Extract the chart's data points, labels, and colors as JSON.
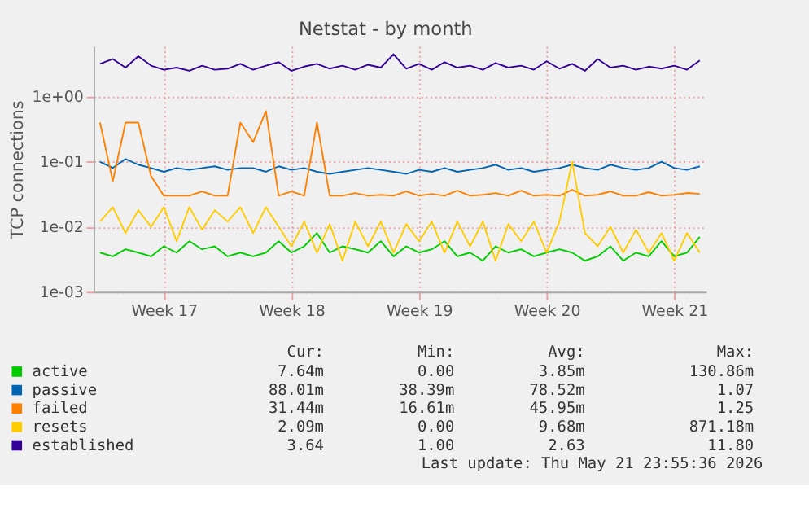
{
  "chart_data": {
    "type": "line",
    "title": "Netstat - by month",
    "ylabel": "TCP connections",
    "log": "y",
    "grid": true,
    "legend": "bottom",
    "line_style": "solid",
    "categories": [
      null,
      null,
      null,
      null,
      null,
      "Week 17",
      null,
      null,
      null,
      null,
      null,
      null,
      null,
      null,
      null,
      "Week 18",
      null,
      null,
      null,
      null,
      null,
      null,
      null,
      null,
      null,
      "Week 19",
      null,
      null,
      null,
      null,
      null,
      null,
      null,
      null,
      null,
      "Week 20",
      null,
      null,
      null,
      null,
      null,
      null,
      null,
      null,
      null,
      "Week 21",
      null,
      null
    ],
    "ylim": [
      0.001,
      6
    ],
    "yticks": [
      {
        "value": 0.001,
        "label": "1e-03"
      },
      {
        "value": 0.01,
        "label": "1e-02"
      },
      {
        "value": 0.1,
        "label": "1e-01"
      },
      {
        "value": 1,
        "label": "1e+00"
      }
    ],
    "series": [
      {
        "name": "active",
        "color": "#00cc00",
        "values": [
          0.004,
          0.0035,
          0.0045,
          0.004,
          0.0035,
          0.005,
          0.004,
          0.006,
          0.0045,
          0.005,
          0.0035,
          0.004,
          0.0035,
          0.004,
          0.006,
          0.004,
          0.005,
          0.008,
          0.004,
          0.005,
          0.0045,
          0.004,
          0.006,
          0.0035,
          0.005,
          0.004,
          0.0045,
          0.006,
          0.0035,
          0.004,
          0.003,
          0.005,
          0.004,
          0.0045,
          0.0035,
          0.004,
          0.0045,
          0.004,
          0.003,
          0.0035,
          0.005,
          0.003,
          0.004,
          0.0035,
          0.006,
          0.0035,
          0.004,
          0.007
        ]
      },
      {
        "name": "passive",
        "color": "#0066b3",
        "values": [
          0.1,
          0.08,
          0.11,
          0.09,
          0.08,
          0.07,
          0.08,
          0.075,
          0.08,
          0.085,
          0.075,
          0.08,
          0.08,
          0.07,
          0.085,
          0.075,
          0.08,
          0.07,
          0.065,
          0.07,
          0.075,
          0.08,
          0.075,
          0.07,
          0.065,
          0.075,
          0.07,
          0.08,
          0.07,
          0.075,
          0.08,
          0.09,
          0.075,
          0.08,
          0.07,
          0.075,
          0.08,
          0.09,
          0.08,
          0.075,
          0.09,
          0.08,
          0.075,
          0.08,
          0.1,
          0.08,
          0.075,
          0.085
        ]
      },
      {
        "name": "failed",
        "color": "#ff8000",
        "values": [
          0.4,
          0.05,
          0.4,
          0.4,
          0.06,
          0.03,
          0.03,
          0.03,
          0.035,
          0.03,
          0.03,
          0.4,
          0.2,
          0.6,
          0.03,
          0.035,
          0.03,
          0.4,
          0.03,
          0.03,
          0.033,
          0.03,
          0.031,
          0.03,
          0.035,
          0.03,
          0.032,
          0.03,
          0.036,
          0.03,
          0.031,
          0.033,
          0.03,
          0.036,
          0.03,
          0.031,
          0.03,
          0.037,
          0.03,
          0.031,
          0.035,
          0.03,
          0.03,
          0.034,
          0.03,
          0.031,
          0.033,
          0.032
        ]
      },
      {
        "name": "resets",
        "color": "#ffcc00",
        "values": [
          0.012,
          0.02,
          0.008,
          0.018,
          0.01,
          0.02,
          0.006,
          0.02,
          0.009,
          0.018,
          0.012,
          0.02,
          0.008,
          0.02,
          0.01,
          0.005,
          0.012,
          0.004,
          0.011,
          0.003,
          0.012,
          0.005,
          0.012,
          0.004,
          0.011,
          0.006,
          0.012,
          0.004,
          0.012,
          0.005,
          0.012,
          0.003,
          0.011,
          0.006,
          0.012,
          0.004,
          0.012,
          0.1,
          0.008,
          0.005,
          0.01,
          0.004,
          0.009,
          0.004,
          0.008,
          0.003,
          0.008,
          0.004
        ]
      },
      {
        "name": "established",
        "color": "#330099",
        "values": [
          3.2,
          3.8,
          2.8,
          4.2,
          3.0,
          2.6,
          2.8,
          2.5,
          3.0,
          2.6,
          2.7,
          3.2,
          2.6,
          3.0,
          3.4,
          2.5,
          2.9,
          3.2,
          2.7,
          3.0,
          2.6,
          3.1,
          2.8,
          4.5,
          2.7,
          3.2,
          2.6,
          3.4,
          2.8,
          3.0,
          2.6,
          3.3,
          2.8,
          3.0,
          2.6,
          3.5,
          2.7,
          3.2,
          2.5,
          3.8,
          2.8,
          3.0,
          2.6,
          2.9,
          2.7,
          3.0,
          2.6,
          3.6
        ]
      }
    ],
    "annotations": [
      "Cur:",
      "Min:",
      "Avg:",
      "Max:",
      "7.64m",
      "0.00",
      "3.85m",
      "130.86m",
      "88.01m",
      "38.39m",
      "78.52m",
      "1.07",
      "31.44m",
      "16.61m",
      "45.95m",
      "1.25",
      "2.09m",
      "0.00",
      "9.68m",
      "871.18m",
      "3.64",
      "1.00",
      "2.63",
      "11.80",
      "Last update: Thu May 21 23:55:36 2026"
    ]
  }
}
